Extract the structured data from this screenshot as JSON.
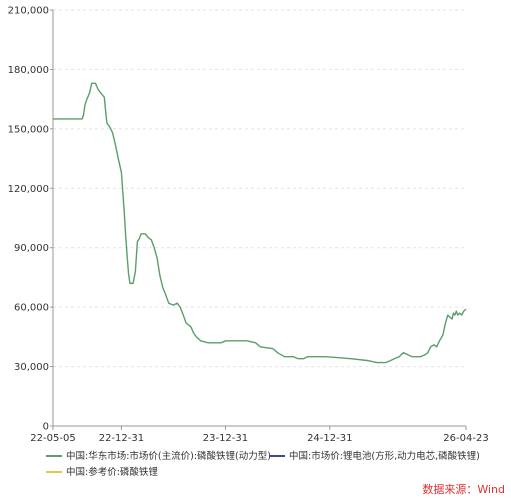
{
  "chart_data": {
    "type": "line",
    "title": "",
    "xlabel": "",
    "ylabel": "",
    "ylim": [
      0,
      210000
    ],
    "y_ticks": [
      0,
      30000,
      60000,
      90000,
      120000,
      150000,
      180000,
      210000
    ],
    "y_tick_labels": [
      "0",
      "30,000",
      "60,000",
      "90,000",
      "120,000",
      "150,000",
      "180,000",
      "210,000"
    ],
    "x_range": [
      "2022-05-05",
      "2026-04-23"
    ],
    "x_ticks": [
      {
        "date": "2022-05-05",
        "label": "22-05-05"
      },
      {
        "date": "2022-12-31",
        "label": "22-12-31"
      },
      {
        "date": "2023-12-31",
        "label": "23-12-31"
      },
      {
        "date": "2024-12-31",
        "label": "24-12-31"
      },
      {
        "date": "2026-04-23",
        "label": "26-04-23"
      }
    ],
    "grid": "horizontal dashed",
    "legend_position": "bottom",
    "series": [
      {
        "name": "中国:华东市场:市场价(主流价):磷酸铁锂(动力型)",
        "color": "#5a9e6a",
        "points": [
          [
            "2022-05-05",
            155000
          ],
          [
            "2022-08-15",
            155000
          ],
          [
            "2022-08-20",
            157000
          ],
          [
            "2022-08-25",
            162000
          ],
          [
            "2022-09-01",
            165000
          ],
          [
            "2022-09-10",
            168000
          ],
          [
            "2022-09-18",
            173000
          ],
          [
            "2022-10-01",
            173000
          ],
          [
            "2022-10-10",
            170000
          ],
          [
            "2022-10-20",
            168000
          ],
          [
            "2022-11-01",
            166000
          ],
          [
            "2022-11-05",
            160000
          ],
          [
            "2022-11-10",
            153000
          ],
          [
            "2022-11-20",
            151000
          ],
          [
            "2022-11-30",
            148000
          ],
          [
            "2022-12-10",
            142000
          ],
          [
            "2022-12-20",
            135000
          ],
          [
            "2022-12-31",
            128000
          ],
          [
            "2023-01-05",
            118000
          ],
          [
            "2023-01-10",
            108000
          ],
          [
            "2023-01-15",
            96000
          ],
          [
            "2023-01-20",
            86000
          ],
          [
            "2023-01-25",
            77000
          ],
          [
            "2023-01-30",
            72000
          ],
          [
            "2023-02-10",
            72000
          ],
          [
            "2023-02-18",
            78000
          ],
          [
            "2023-02-25",
            93000
          ],
          [
            "2023-03-05",
            95000
          ],
          [
            "2023-03-10",
            97000
          ],
          [
            "2023-03-25",
            97000
          ],
          [
            "2023-04-05",
            95000
          ],
          [
            "2023-04-15",
            94000
          ],
          [
            "2023-04-25",
            90000
          ],
          [
            "2023-05-05",
            85000
          ],
          [
            "2023-05-15",
            76000
          ],
          [
            "2023-05-25",
            70000
          ],
          [
            "2023-06-05",
            66000
          ],
          [
            "2023-06-15",
            62000
          ],
          [
            "2023-07-01",
            61000
          ],
          [
            "2023-07-15",
            62000
          ],
          [
            "2023-07-25",
            60000
          ],
          [
            "2023-08-05",
            56000
          ],
          [
            "2023-08-15",
            52000
          ],
          [
            "2023-09-01",
            50000
          ],
          [
            "2023-09-10",
            47000
          ],
          [
            "2023-09-20",
            45000
          ],
          [
            "2023-10-05",
            43000
          ],
          [
            "2023-11-01",
            42000
          ],
          [
            "2023-12-15",
            42000
          ],
          [
            "2024-01-01",
            43000
          ],
          [
            "2024-03-15",
            43000
          ],
          [
            "2024-04-15",
            42000
          ],
          [
            "2024-05-01",
            40000
          ],
          [
            "2024-06-15",
            39000
          ],
          [
            "2024-07-01",
            37000
          ],
          [
            "2024-07-25",
            35000
          ],
          [
            "2024-08-25",
            35000
          ],
          [
            "2024-09-10",
            34000
          ],
          [
            "2024-10-01",
            34000
          ],
          [
            "2024-10-15",
            35000
          ],
          [
            "2024-11-01",
            35000
          ],
          [
            "2024-12-15",
            35000
          ],
          [
            "2025-02-01",
            34500
          ],
          [
            "2025-03-15",
            34000
          ],
          [
            "2025-05-15",
            33000
          ],
          [
            "2025-06-15",
            32000
          ],
          [
            "2025-07-15",
            32000
          ],
          [
            "2025-08-01",
            33000
          ],
          [
            "2025-08-15",
            34000
          ],
          [
            "2025-09-01",
            35000
          ],
          [
            "2025-09-15",
            37000
          ],
          [
            "2025-10-01",
            36000
          ],
          [
            "2025-10-15",
            35000
          ],
          [
            "2025-11-15",
            35000
          ],
          [
            "2025-12-01",
            36000
          ],
          [
            "2025-12-10",
            37000
          ],
          [
            "2025-12-20",
            40000
          ],
          [
            "2026-01-01",
            41000
          ],
          [
            "2026-01-10",
            40000
          ],
          [
            "2026-01-20",
            43000
          ],
          [
            "2026-02-01",
            46000
          ],
          [
            "2026-02-10",
            52000
          ],
          [
            "2026-02-18",
            56000
          ],
          [
            "2026-02-25",
            55000
          ],
          [
            "2026-03-05",
            54000
          ],
          [
            "2026-03-10",
            57000
          ],
          [
            "2026-03-15",
            56000
          ],
          [
            "2026-03-20",
            58000
          ],
          [
            "2026-03-25",
            56000
          ],
          [
            "2026-04-01",
            57000
          ],
          [
            "2026-04-08",
            56000
          ],
          [
            "2026-04-15",
            58000
          ],
          [
            "2026-04-23",
            59000
          ]
        ]
      },
      {
        "name": "中国:市场价:锂电池(方形,动力电芯,磷酸铁锂)",
        "color": "#3a4a8a",
        "points": []
      },
      {
        "name": "中国:参考价:磷酸铁锂",
        "color": "#e6c642",
        "points": []
      }
    ],
    "source": "数据来源：Wind"
  }
}
